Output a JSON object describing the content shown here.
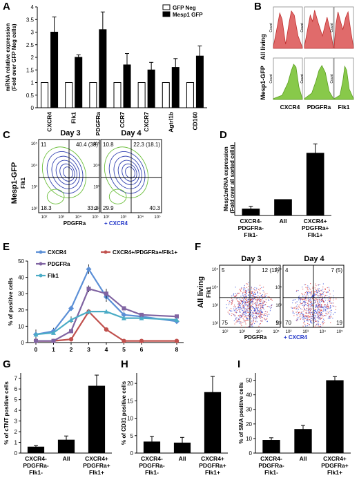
{
  "panels": {
    "A": {
      "label": "A"
    },
    "B": {
      "label": "B",
      "rows": [
        "All living",
        "Mesp1-GFP"
      ],
      "cols": [
        "CXCR4",
        "PDGFRa",
        "Flk1"
      ],
      "count_label": "Count",
      "colors": {
        "all_living": "#e06b6b",
        "mesp1": "#88c94a"
      }
    },
    "C": {
      "label": "C",
      "y_label": "Mesp1-GFP",
      "y_marker": "Flk1",
      "x_marker": "PDGFRa",
      "x_marker2": "+ CXCR4",
      "plots": [
        {
          "title": "Day 3",
          "q_ul": "11",
          "q_ur": "40.4 (38)",
          "q_ll": "18.3",
          "q_lr": "33.2"
        },
        {
          "title": "Day 4",
          "q_ul": "10.8",
          "q_ur": "22.3 (18.1)",
          "q_ll": "29.9",
          "q_lr": "40.3"
        }
      ],
      "ticks": [
        "10²",
        "10³",
        "10⁴",
        "10⁵"
      ]
    },
    "D": {
      "label": "D"
    },
    "E": {
      "label": "E"
    },
    "F": {
      "label": "F",
      "y_label": "All living",
      "y_marker": "Flk1",
      "x_marker": "PDGFRa",
      "x_marker2": "+ CXCR4",
      "plots": [
        {
          "title": "Day 3",
          "q_ul": "5",
          "q_ur": "12 (11)",
          "q_ll": "75",
          "q_lr": "9"
        },
        {
          "title": "Day 4",
          "q_ul": "4",
          "q_ur": "7 (5)",
          "q_ll": "70",
          "q_lr": "19"
        }
      ],
      "ticks": [
        "10²",
        "10³",
        "10⁴",
        "10⁵"
      ]
    },
    "G": {
      "label": "G"
    },
    "H": {
      "label": "H"
    },
    "I": {
      "label": "I"
    }
  },
  "chart_data": [
    {
      "panel": "A",
      "type": "bar",
      "categories": [
        "CXCR4",
        "Flk1",
        "PDGFRa",
        "CCR7",
        "CXCR7",
        "Agtrl1b",
        "CD160"
      ],
      "ylabel": [
        "mRNA relative expression",
        "(Fold over GFP Neg cells)"
      ],
      "ylim": [
        0,
        4
      ],
      "yticks": [
        0,
        0.5,
        1,
        1.5,
        2,
        2.5,
        3,
        3.5,
        4
      ],
      "legend": "top-right",
      "series": [
        {
          "name": "GFP Neg",
          "color": "#ffffff",
          "values": [
            1,
            1,
            1,
            1,
            1,
            1,
            1
          ],
          "errors": [
            0,
            0,
            0,
            0,
            0,
            0,
            0
          ]
        },
        {
          "name": "Mesp1 GFP",
          "color": "#000000",
          "values": [
            3.0,
            2.0,
            3.1,
            1.7,
            1.5,
            1.6,
            2.05
          ],
          "errors": [
            0.6,
            0.1,
            0.7,
            0.45,
            0.3,
            0.35,
            0.4
          ]
        }
      ]
    },
    {
      "panel": "D",
      "type": "bar",
      "categories": [
        [
          "CXCR4-",
          "PDGFRa-",
          "Flk1-"
        ],
        [
          "All"
        ],
        [
          "CXCR4+",
          "PDGFRa+",
          "Flk1+"
        ]
      ],
      "ylabel": [
        "Mesp1mRNA expression",
        "(Fold over all sorted cells)"
      ],
      "ylim": [
        0,
        4.5
      ],
      "yticks": [],
      "values": [
        0.42,
        1.0,
        3.85
      ],
      "errors": [
        0.15,
        0,
        0.55
      ]
    },
    {
      "panel": "E",
      "type": "line",
      "x": [
        0,
        1,
        2,
        3,
        4,
        5,
        6,
        8
      ],
      "ylabel": "% of positive cells",
      "ylim": [
        0,
        50
      ],
      "yticks": [
        0,
        10,
        20,
        30,
        40,
        50
      ],
      "series": [
        {
          "name": "CXCR4",
          "color": "#5b8fd6",
          "values": [
            5,
            7,
            21,
            45,
            28,
            17,
            16,
            13
          ],
          "errors": [
            3,
            2,
            1.5,
            3,
            3,
            2,
            1,
            1.5
          ]
        },
        {
          "name": "CXCR4+/PDGFRa+/Flk1+",
          "color": "#c0504d",
          "values": [
            1,
            1,
            2,
            19,
            8,
            1,
            1,
            1
          ],
          "errors": [
            0.5,
            0.5,
            0.5,
            1,
            1,
            0.5,
            0.5,
            0.5
          ]
        },
        {
          "name": "PDGFRa",
          "color": "#8064a2",
          "values": [
            1,
            1,
            7,
            33,
            30,
            21,
            17,
            16
          ],
          "errors": [
            0.5,
            0.5,
            1,
            2,
            3,
            1,
            1,
            1
          ]
        },
        {
          "name": "Flk1",
          "color": "#4bacc6",
          "values": [
            5,
            6,
            14,
            19,
            19,
            15,
            15,
            14
          ],
          "errors": [
            1,
            1,
            2,
            1.5,
            1,
            1,
            1,
            1
          ]
        }
      ]
    },
    {
      "panel": "G",
      "type": "bar",
      "categories": [
        [
          "CXCR4-",
          "PDGFRa-",
          "Flk1-"
        ],
        [
          "All"
        ],
        [
          "CXCR4+",
          "PDGFRa+",
          "Flk1+"
        ]
      ],
      "ylabel": "% of cTNT positive cells",
      "ylim": [
        0,
        7.5
      ],
      "yticks": [
        0,
        1,
        2,
        3,
        4,
        5,
        6,
        7
      ],
      "values": [
        0.6,
        1.25,
        6.3
      ],
      "errors": [
        0.1,
        0.35,
        1.0
      ]
    },
    {
      "panel": "H",
      "type": "bar",
      "categories": [
        [
          "CXCR4-",
          "PDGFRa-",
          "Flk1-"
        ],
        [
          "All"
        ],
        [
          "CXCR4+",
          "PDGFRa+",
          "Flk1+"
        ]
      ],
      "ylabel": "% of CD31 positive cells",
      "ylim": [
        0,
        23
      ],
      "yticks": [
        0,
        5,
        10,
        15,
        20
      ],
      "values": [
        3.3,
        3.0,
        17.5
      ],
      "errors": [
        1.5,
        1.5,
        4.5
      ]
    },
    {
      "panel": "I",
      "type": "bar",
      "categories": [
        [
          "CXCR4-",
          "PDGFRa-",
          "Flk1-"
        ],
        [
          "All"
        ],
        [
          "CXCR4+",
          "PDGFRa+",
          "Flk1+"
        ]
      ],
      "ylabel": "% of SMA positive cells",
      "ylim": [
        0,
        55
      ],
      "yticks": [
        0,
        10,
        20,
        30,
        40,
        50
      ],
      "values": [
        9,
        16.5,
        50
      ],
      "errors": [
        1.5,
        2.5,
        2.5
      ]
    }
  ]
}
